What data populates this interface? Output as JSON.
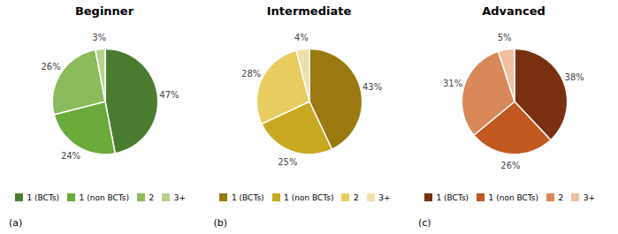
{
  "chart_data": [
    {
      "type": "pie",
      "title": "Beginner",
      "annotations": [
        "(a)"
      ],
      "categories": [
        "1 (BCTs)",
        "1 (non BCTs)",
        "2",
        "3+"
      ],
      "values": [
        47,
        24,
        26,
        3
      ],
      "value_labels": [
        "47%",
        "24%",
        "26%",
        "3%"
      ],
      "colors": [
        "#4a7c2f",
        "#6aaa3a",
        "#8aba5a",
        "#b5d48a"
      ],
      "data_labels": true,
      "legend": "bottom"
    },
    {
      "type": "pie",
      "title": "Intermediate",
      "annotations": [
        "(b)"
      ],
      "categories": [
        "1 (BCTs)",
        "1 (non BCTs)",
        "2",
        "3+"
      ],
      "values": [
        43,
        25,
        28,
        4
      ],
      "value_labels": [
        "43%",
        "25%",
        "28%",
        "4%"
      ],
      "colors": [
        "#9a7a10",
        "#c8a820",
        "#e8cc60",
        "#f0dfa8"
      ],
      "data_labels": true,
      "legend": "bottom"
    },
    {
      "type": "pie",
      "title": "Advanced",
      "annotations": [
        "(c)"
      ],
      "categories": [
        "1 (BCTs)",
        "1 (non BCTs)",
        "2",
        "3+"
      ],
      "values": [
        38,
        26,
        31,
        5
      ],
      "value_labels": [
        "38%",
        "26%",
        "31%",
        "5%"
      ],
      "colors": [
        "#7a3010",
        "#c05820",
        "#d88858",
        "#f0c0a0"
      ],
      "data_labels": true,
      "legend": "bottom"
    }
  ]
}
